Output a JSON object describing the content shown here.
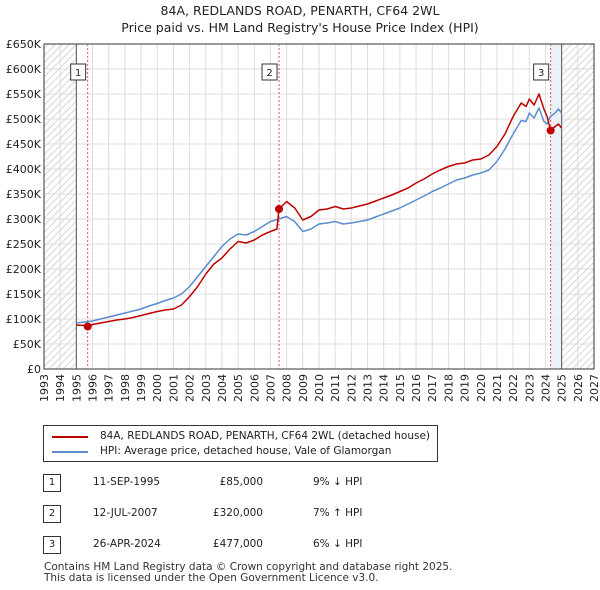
{
  "title_line1": "84A, REDLANDS ROAD, PENARTH, CF64 2WL",
  "title_line2": "Price paid vs. HM Land Registry's House Price Index (HPI)",
  "colors": {
    "property_line": "#c00000",
    "hpi_line": "#5b8ccf",
    "grid": "#dddddd",
    "marker_vline": "#e05050",
    "hatch": "#cccccc",
    "shade": "#e6eef8"
  },
  "chart_data": {
    "type": "line",
    "title": "84A, REDLANDS ROAD, PENARTH, CF64 2WL",
    "subtitle": "Price paid vs. HM Land Registry's House Price Index (HPI)",
    "xlabel": "",
    "ylabel": "",
    "xlim": [
      1993,
      2027
    ],
    "ylim": [
      0,
      650000
    ],
    "grid": true,
    "legend_position": "below",
    "x_ticks": [
      1993,
      1994,
      1995,
      1996,
      1997,
      1998,
      1999,
      2000,
      2001,
      2002,
      2003,
      2004,
      2005,
      2006,
      2007,
      2008,
      2009,
      2010,
      2011,
      2012,
      2013,
      2014,
      2015,
      2016,
      2017,
      2018,
      2019,
      2020,
      2021,
      2022,
      2023,
      2024,
      2025,
      2026,
      2027
    ],
    "y_ticks": [
      0,
      50000,
      100000,
      150000,
      200000,
      250000,
      300000,
      350000,
      400000,
      450000,
      500000,
      550000,
      600000,
      650000
    ],
    "y_tick_labels": [
      "£0",
      "£50K",
      "£100K",
      "£150K",
      "£200K",
      "£250K",
      "£300K",
      "£350K",
      "£400K",
      "£450K",
      "£500K",
      "£550K",
      "£600K",
      "£650K"
    ],
    "data_start_x": 1995.0,
    "data_end_x": 2025.0,
    "series": [
      {
        "name": "84A, REDLANDS ROAD, PENARTH, CF64 2WL (detached house)",
        "color": "#c00000",
        "x": [
          1995.0,
          1995.5,
          1995.7,
          1996.0,
          1996.5,
          1997.0,
          1997.5,
          1998.0,
          1998.5,
          1999.0,
          1999.5,
          2000.0,
          2000.5,
          2001.0,
          2001.5,
          2002.0,
          2002.5,
          2003.0,
          2003.5,
          2004.0,
          2004.5,
          2005.0,
          2005.5,
          2006.0,
          2006.5,
          2007.0,
          2007.4,
          2007.53,
          2008.0,
          2008.5,
          2009.0,
          2009.5,
          2010.0,
          2010.5,
          2011.0,
          2011.5,
          2012.0,
          2012.5,
          2013.0,
          2013.5,
          2014.0,
          2014.5,
          2015.0,
          2015.5,
          2016.0,
          2016.5,
          2017.0,
          2017.5,
          2018.0,
          2018.5,
          2019.0,
          2019.5,
          2020.0,
          2020.5,
          2021.0,
          2021.5,
          2022.0,
          2022.5,
          2022.8,
          2023.0,
          2023.3,
          2023.6,
          2023.9,
          2024.1,
          2024.32,
          2024.6,
          2024.8,
          2025.0
        ],
        "y": [
          88000,
          87000,
          85000,
          89000,
          92000,
          95000,
          98000,
          100000,
          103000,
          107000,
          111000,
          115000,
          118000,
          120000,
          128000,
          145000,
          165000,
          190000,
          210000,
          222000,
          240000,
          255000,
          252000,
          258000,
          268000,
          275000,
          280000,
          320000,
          335000,
          322000,
          298000,
          305000,
          318000,
          320000,
          325000,
          320000,
          322000,
          326000,
          330000,
          336000,
          342000,
          348000,
          355000,
          362000,
          372000,
          380000,
          390000,
          398000,
          405000,
          410000,
          412000,
          418000,
          420000,
          428000,
          445000,
          470000,
          505000,
          532000,
          525000,
          540000,
          528000,
          550000,
          520000,
          505000,
          477000,
          485000,
          490000,
          482000
        ]
      },
      {
        "name": "HPI: Average price, detached house, Vale of Glamorgan",
        "color": "#5b8ccf",
        "x": [
          1995.0,
          1995.5,
          1996.0,
          1996.5,
          1997.0,
          1997.5,
          1998.0,
          1998.5,
          1999.0,
          1999.5,
          2000.0,
          2000.5,
          2001.0,
          2001.5,
          2002.0,
          2002.5,
          2003.0,
          2003.5,
          2004.0,
          2004.5,
          2005.0,
          2005.5,
          2006.0,
          2006.5,
          2007.0,
          2007.5,
          2008.0,
          2008.5,
          2009.0,
          2009.5,
          2010.0,
          2010.5,
          2011.0,
          2011.5,
          2012.0,
          2012.5,
          2013.0,
          2013.5,
          2014.0,
          2014.5,
          2015.0,
          2015.5,
          2016.0,
          2016.5,
          2017.0,
          2017.5,
          2018.0,
          2018.5,
          2019.0,
          2019.5,
          2020.0,
          2020.5,
          2021.0,
          2021.5,
          2022.0,
          2022.5,
          2022.8,
          2023.0,
          2023.3,
          2023.6,
          2023.9,
          2024.1,
          2024.3,
          2024.6,
          2024.8,
          2025.0
        ],
        "y": [
          92000,
          94000,
          96000,
          100000,
          104000,
          108000,
          112000,
          116000,
          120000,
          126000,
          131000,
          137000,
          142000,
          150000,
          165000,
          185000,
          205000,
          225000,
          245000,
          260000,
          270000,
          268000,
          275000,
          285000,
          295000,
          300000,
          305000,
          295000,
          275000,
          280000,
          290000,
          292000,
          295000,
          290000,
          292000,
          295000,
          298000,
          304000,
          310000,
          316000,
          322000,
          330000,
          338000,
          346000,
          355000,
          362000,
          370000,
          378000,
          382000,
          388000,
          392000,
          398000,
          415000,
          440000,
          470000,
          497000,
          495000,
          512000,
          502000,
          522000,
          495000,
          490000,
          505000,
          512000,
          520000,
          512000
        ]
      }
    ],
    "transactions": [
      {
        "label": "1",
        "x": 1995.7,
        "y": 85000
      },
      {
        "label": "2",
        "x": 2007.53,
        "y": 320000
      },
      {
        "label": "3",
        "x": 2024.32,
        "y": 477000
      }
    ]
  },
  "legend": [
    {
      "label": "84A, REDLANDS ROAD, PENARTH, CF64 2WL (detached house)",
      "color": "#c00000"
    },
    {
      "label": "HPI: Average price, detached house, Vale of Glamorgan",
      "color": "#5b8ccf"
    }
  ],
  "transactions_table": [
    {
      "num": "1",
      "date": "11-SEP-1995",
      "price": "£85,000",
      "hpi": "9% ↓ HPI"
    },
    {
      "num": "2",
      "date": "12-JUL-2007",
      "price": "£320,000",
      "hpi": "7% ↑ HPI"
    },
    {
      "num": "3",
      "date": "26-APR-2024",
      "price": "£477,000",
      "hpi": "6% ↓ HPI"
    }
  ],
  "footer_line1": "Contains HM Land Registry data © Crown copyright and database right 2025.",
  "footer_line2": "This data is licensed under the Open Government Licence v3.0."
}
